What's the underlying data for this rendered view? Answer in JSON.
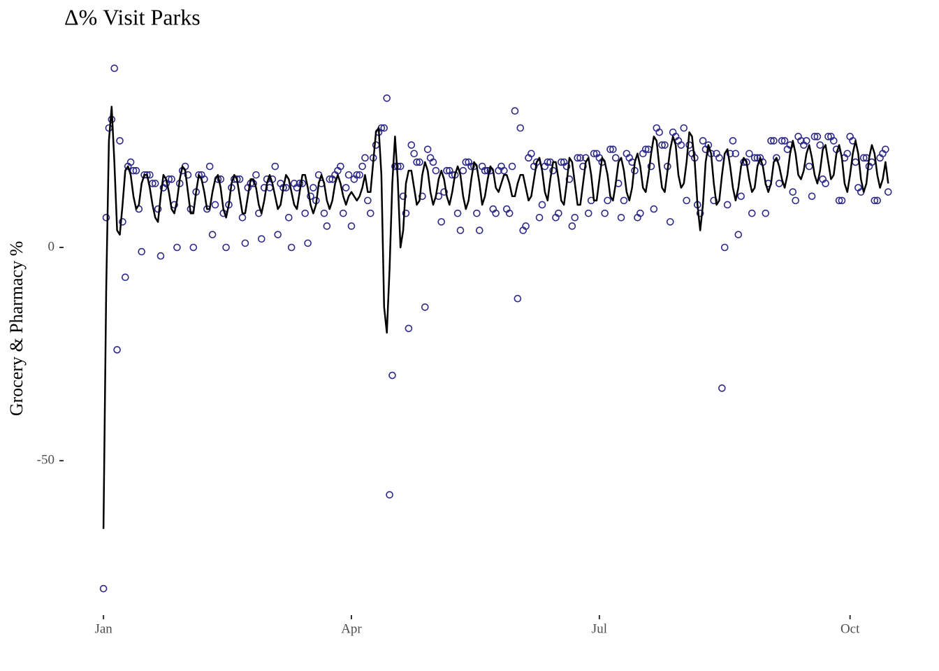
{
  "chart_data": {
    "type": "scatter",
    "title": "Δ% Visit Parks",
    "y_label": "Grocery & Pharmacy %",
    "xlim": [
      -14.9,
      292.8
    ],
    "ylim": [
      -86.2,
      44.9
    ],
    "xticks": [
      {
        "value": 0,
        "label": "Jan"
      },
      {
        "value": 91,
        "label": "Apr"
      },
      {
        "value": 182,
        "label": "Jul"
      },
      {
        "value": 274,
        "label": "Oct"
      }
    ],
    "yticks": [
      -50,
      0
    ],
    "grid": false,
    "x": [
      0,
      1,
      2,
      3,
      4,
      5,
      6,
      7,
      8,
      9,
      10,
      11,
      12,
      13,
      14,
      15,
      16,
      17,
      18,
      19,
      20,
      21,
      22,
      23,
      24,
      25,
      26,
      27,
      28,
      29,
      30,
      31,
      32,
      33,
      34,
      35,
      36,
      37,
      38,
      39,
      40,
      41,
      42,
      43,
      44,
      45,
      46,
      47,
      48,
      49,
      50,
      51,
      52,
      53,
      54,
      55,
      56,
      57,
      58,
      59,
      60,
      61,
      62,
      63,
      64,
      65,
      66,
      67,
      68,
      69,
      70,
      71,
      72,
      73,
      74,
      75,
      76,
      77,
      78,
      79,
      80,
      81,
      82,
      83,
      84,
      85,
      86,
      87,
      88,
      89,
      90,
      91,
      92,
      93,
      94,
      95,
      96,
      97,
      98,
      99,
      100,
      101,
      102,
      103,
      104,
      105,
      106,
      107,
      108,
      109,
      110,
      111,
      112,
      113,
      114,
      115,
      116,
      117,
      118,
      119,
      120,
      121,
      122,
      123,
      124,
      125,
      126,
      127,
      128,
      129,
      130,
      131,
      132,
      133,
      134,
      135,
      136,
      137,
      138,
      139,
      140,
      141,
      142,
      143,
      144,
      145,
      146,
      147,
      148,
      149,
      150,
      151,
      152,
      153,
      154,
      155,
      156,
      157,
      158,
      159,
      160,
      161,
      162,
      163,
      164,
      165,
      166,
      167,
      168,
      169,
      170,
      171,
      172,
      173,
      174,
      175,
      176,
      177,
      178,
      179,
      180,
      181,
      182,
      183,
      184,
      185,
      186,
      187,
      188,
      189,
      190,
      191,
      192,
      193,
      194,
      195,
      196,
      197,
      198,
      199,
      200,
      201,
      202,
      203,
      204,
      205,
      206,
      207,
      208,
      209,
      210,
      211,
      212,
      213,
      214,
      215,
      216,
      217,
      218,
      219,
      220,
      221,
      222,
      223,
      224,
      225,
      226,
      227,
      228,
      229,
      230,
      231,
      232,
      233,
      234,
      235,
      236,
      237,
      238,
      239,
      240,
      241,
      242,
      243,
      244,
      245,
      246,
      247,
      248,
      249,
      250,
      251,
      252,
      253,
      254,
      255,
      256,
      257,
      258,
      259,
      260,
      261,
      262,
      263,
      264,
      265,
      266,
      267,
      268,
      269,
      270,
      271,
      272,
      273,
      274,
      275,
      276,
      277,
      278,
      279,
      280,
      281,
      282,
      283,
      284,
      285,
      286,
      287,
      288
    ],
    "series": [
      {
        "kind": "scatter",
        "color": "#2d2a8c",
        "values": [
          -80,
          7,
          28,
          30,
          42,
          -24,
          25,
          6,
          -7,
          19,
          20,
          18,
          18,
          9,
          -1,
          17,
          17,
          17,
          15,
          15,
          9,
          -2,
          14,
          15,
          16,
          16,
          10,
          0,
          15,
          18,
          19,
          17,
          9,
          0,
          13,
          17,
          17,
          16,
          9,
          19,
          3,
          10,
          16,
          16,
          8,
          0,
          10,
          14,
          16,
          16,
          16,
          7,
          1,
          14,
          15,
          15,
          17,
          8,
          2,
          14,
          16,
          14,
          16,
          19,
          3,
          15,
          14,
          14,
          7,
          0,
          15,
          14,
          15,
          15,
          8,
          1,
          12,
          14,
          11,
          17,
          15,
          8,
          5,
          16,
          16,
          17,
          18,
          19,
          8,
          14,
          17,
          5,
          16,
          17,
          17,
          19,
          21,
          11,
          8,
          21,
          24,
          27,
          28,
          28,
          35,
          -58,
          -30,
          19,
          19,
          19,
          12,
          8,
          -19,
          24,
          22,
          20,
          20,
          12,
          -14,
          23,
          21,
          20,
          18,
          12,
          6,
          13,
          18,
          18,
          17,
          17,
          8,
          4,
          18,
          20,
          20,
          19,
          19,
          8,
          4,
          19,
          18,
          18,
          18,
          9,
          8,
          18,
          19,
          18,
          9,
          8,
          19,
          32,
          -12,
          28,
          4,
          5,
          21,
          22,
          19,
          20,
          7,
          10,
          19,
          20,
          20,
          18,
          7,
          8,
          20,
          20,
          19,
          16,
          5,
          7,
          21,
          21,
          19,
          21,
          8,
          11,
          22,
          22,
          21,
          20,
          8,
          11,
          23,
          23,
          21,
          15,
          7,
          11,
          22,
          21,
          20,
          18,
          7,
          8,
          22,
          23,
          23,
          19,
          9,
          28,
          27,
          24,
          24,
          19,
          6,
          27,
          26,
          25,
          24,
          28,
          11,
          24,
          22,
          21,
          10,
          8,
          25,
          23,
          24,
          22,
          11,
          22,
          21,
          -33,
          0,
          10,
          22,
          25,
          22,
          3,
          12,
          20,
          20,
          22,
          8,
          21,
          21,
          21,
          20,
          8,
          15,
          25,
          25,
          21,
          15,
          25,
          25,
          23,
          24,
          13,
          11,
          26,
          25,
          24,
          25,
          19,
          12,
          26,
          26,
          24,
          16,
          15,
          26,
          26,
          25,
          23,
          11,
          11,
          21,
          22,
          26,
          25,
          20,
          14,
          13,
          21,
          21,
          19,
          20,
          11,
          11,
          21,
          22,
          23,
          13
        ]
      },
      {
        "kind": "line",
        "color": "#000000",
        "values": [
          -66,
          -10,
          25,
          33,
          20,
          4,
          3,
          10,
          18,
          19,
          17,
          12,
          9,
          10,
          15,
          17,
          17,
          14,
          10,
          7,
          6,
          12,
          17,
          16,
          13,
          9,
          8,
          11,
          16,
          19,
          18,
          13,
          8,
          8,
          13,
          17,
          16,
          13,
          9,
          9,
          13,
          16,
          17,
          14,
          9,
          7,
          10,
          15,
          17,
          16,
          12,
          8,
          8,
          12,
          16,
          16,
          14,
          10,
          8,
          11,
          15,
          17,
          15,
          12,
          9,
          10,
          14,
          17,
          16,
          13,
          10,
          9,
          13,
          17,
          17,
          14,
          10,
          8,
          10,
          15,
          17,
          15,
          11,
          9,
          11,
          15,
          17,
          15,
          12,
          10,
          12,
          13,
          12,
          11,
          12,
          14,
          17,
          13,
          13,
          20,
          27,
          28,
          17,
          -14,
          -20,
          -5,
          15,
          26,
          16,
          0,
          4,
          15,
          18,
          18,
          14,
          10,
          11,
          17,
          20,
          18,
          13,
          10,
          12,
          16,
          18,
          16,
          12,
          10,
          13,
          17,
          19,
          17,
          12,
          9,
          11,
          16,
          20,
          19,
          15,
          10,
          12,
          16,
          19,
          18,
          14,
          13,
          15,
          17,
          17,
          15,
          12,
          12,
          15,
          17,
          17,
          14,
          11,
          12,
          16,
          20,
          21,
          18,
          13,
          11,
          16,
          20,
          20,
          16,
          11,
          10,
          15,
          21,
          20,
          15,
          10,
          10,
          15,
          20,
          21,
          17,
          11,
          11,
          16,
          21,
          20,
          17,
          12,
          11,
          15,
          20,
          21,
          18,
          13,
          11,
          14,
          20,
          22,
          19,
          14,
          13,
          17,
          22,
          26,
          25,
          19,
          14,
          13,
          18,
          23,
          26,
          24,
          17,
          14,
          15,
          20,
          27,
          26,
          20,
          10,
          4,
          10,
          20,
          24,
          22,
          15,
          10,
          11,
          17,
          22,
          23,
          19,
          14,
          11,
          14,
          19,
          21,
          20,
          16,
          13,
          14,
          19,
          21,
          19,
          15,
          13,
          15,
          20,
          21,
          19,
          16,
          14,
          17,
          22,
          25,
          22,
          17,
          16,
          18,
          22,
          24,
          21,
          17,
          15,
          18,
          23,
          24,
          20,
          16,
          17,
          22,
          24,
          21,
          15,
          13,
          17,
          22,
          25,
          22,
          16,
          13,
          15,
          21,
          24,
          22,
          17,
          14,
          16,
          20,
          15
        ]
      }
    ]
  }
}
